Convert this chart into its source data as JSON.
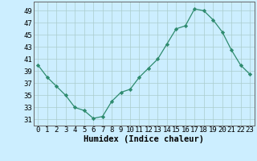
{
  "x": [
    0,
    1,
    2,
    3,
    4,
    5,
    6,
    7,
    8,
    9,
    10,
    11,
    12,
    13,
    14,
    15,
    16,
    17,
    18,
    19,
    20,
    21,
    22,
    23
  ],
  "y": [
    40.0,
    38.0,
    36.5,
    35.0,
    33.0,
    32.5,
    31.2,
    31.5,
    34.0,
    35.5,
    36.0,
    38.0,
    39.5,
    41.0,
    43.5,
    46.0,
    46.5,
    49.3,
    49.0,
    47.5,
    45.5,
    42.5,
    40.0,
    38.5
  ],
  "title": "",
  "xlabel": "Humidex (Indice chaleur)",
  "ylabel": "",
  "line_color": "#2e8b6e",
  "marker_color": "#2e8b6e",
  "bg_color": "#cceeff",
  "grid_color": "#aacccc",
  "ylim_min": 30,
  "ylim_max": 50,
  "yticks": [
    31,
    33,
    35,
    37,
    39,
    41,
    43,
    45,
    47,
    49
  ],
  "xticks": [
    0,
    1,
    2,
    3,
    4,
    5,
    6,
    7,
    8,
    9,
    10,
    11,
    12,
    13,
    14,
    15,
    16,
    17,
    18,
    19,
    20,
    21,
    22,
    23
  ],
  "label_fontsize": 7.5,
  "tick_fontsize": 6.5
}
